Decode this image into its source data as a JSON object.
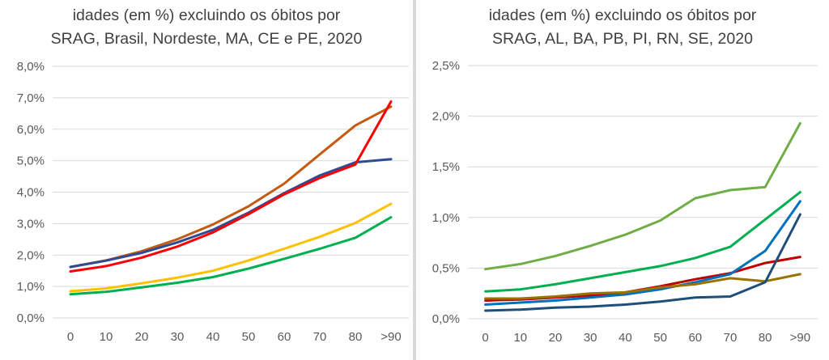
{
  "chart_data": [
    {
      "type": "line",
      "title_lines": [
        "idades (em %) excluindo os óbitos por",
        "SRAG, Brasil, Nordeste, MA, CE e PE, 2020"
      ],
      "categories": [
        "0",
        "10",
        "20",
        "30",
        "40",
        "50",
        "60",
        "70",
        "80",
        ">90"
      ],
      "ylim": [
        0,
        8
      ],
      "y_ticks": [
        "0,0%",
        "1,0%",
        "2,0%",
        "3,0%",
        "4,0%",
        "5,0%",
        "6,0%",
        "7,0%",
        "8,0%"
      ],
      "grid": true,
      "series": [
        {
          "color": "#c55a11",
          "values": [
            1.62,
            1.83,
            2.12,
            2.5,
            2.97,
            3.55,
            4.27,
            5.2,
            6.12,
            6.72
          ]
        },
        {
          "color": "#2e4c96",
          "values": [
            1.62,
            1.82,
            2.07,
            2.4,
            2.8,
            3.35,
            3.97,
            4.53,
            4.95,
            5.05
          ]
        },
        {
          "color": "#ff0000",
          "values": [
            1.48,
            1.65,
            1.92,
            2.27,
            2.72,
            3.3,
            3.93,
            4.45,
            4.88,
            6.88
          ]
        },
        {
          "color": "#ffc000",
          "values": [
            0.85,
            0.94,
            1.1,
            1.28,
            1.5,
            1.83,
            2.2,
            2.58,
            3.02,
            3.63
          ]
        },
        {
          "color": "#00b050",
          "values": [
            0.75,
            0.83,
            0.97,
            1.12,
            1.3,
            1.57,
            1.88,
            2.2,
            2.55,
            3.2
          ]
        }
      ]
    },
    {
      "type": "line",
      "title_lines": [
        "idades (em %) excluindo os óbitos por",
        "SRAG, AL, BA, PB, PI, RN, SE, 2020"
      ],
      "categories": [
        "0",
        "10",
        "20",
        "30",
        "40",
        "50",
        "60",
        "70",
        "80",
        ">90"
      ],
      "ylim": [
        0,
        2.5
      ],
      "y_ticks": [
        "0,0%",
        "0,5%",
        "1,0%",
        "1,5%",
        "2,0%",
        "2,5%"
      ],
      "grid": true,
      "series": [
        {
          "color": "#70ad47",
          "values": [
            0.49,
            0.54,
            0.62,
            0.72,
            0.83,
            0.97,
            1.19,
            1.27,
            1.3,
            1.93
          ]
        },
        {
          "color": "#00b050",
          "values": [
            0.27,
            0.29,
            0.34,
            0.4,
            0.46,
            0.52,
            0.6,
            0.71,
            0.98,
            1.25
          ]
        },
        {
          "color": "#c00000",
          "values": [
            0.18,
            0.19,
            0.21,
            0.23,
            0.26,
            0.32,
            0.39,
            0.45,
            0.55,
            0.61
          ]
        },
        {
          "color": "#0070c0",
          "values": [
            0.14,
            0.16,
            0.18,
            0.21,
            0.24,
            0.29,
            0.36,
            0.44,
            0.67,
            1.16
          ]
        },
        {
          "color": "#997300",
          "values": [
            0.2,
            0.2,
            0.22,
            0.25,
            0.26,
            0.31,
            0.34,
            0.4,
            0.37,
            0.44
          ]
        },
        {
          "color": "#1f4e79",
          "values": [
            0.08,
            0.09,
            0.11,
            0.12,
            0.14,
            0.17,
            0.21,
            0.22,
            0.36,
            1.03
          ]
        }
      ]
    }
  ]
}
